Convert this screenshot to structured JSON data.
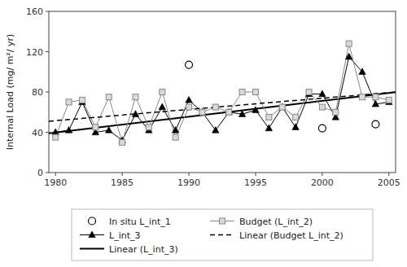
{
  "chart_data": {
    "type": "line",
    "y_label": "Internal Load (mg/ m²/ yr)",
    "xlim": [
      1979.5,
      2005.5
    ],
    "ylim": [
      0,
      160
    ],
    "xticks": [
      1980,
      1985,
      1990,
      1995,
      2000,
      2005
    ],
    "yticks": [
      0,
      40,
      80,
      120,
      160
    ],
    "grid": false,
    "legend": "bottom",
    "series": [
      {
        "name": "In situ L_int_1",
        "type": "scatter",
        "color": "#000000",
        "marker": "circle",
        "x": [
          1990,
          2000,
          2004
        ],
        "values": [
          107,
          44,
          48
        ]
      },
      {
        "name": "L_int_3",
        "type": "line",
        "color": "#000000",
        "marker": "triangle",
        "line_style": "solid",
        "x": [
          1980,
          1981,
          1982,
          1983,
          1984,
          1985,
          1986,
          1987,
          1988,
          1989,
          1990,
          1991,
          1992,
          1993,
          1994,
          1995,
          1996,
          1997,
          1998,
          1999,
          2000,
          2001,
          2002,
          2003,
          2004,
          2005
        ],
        "values": [
          40,
          42,
          70,
          40,
          42,
          32,
          58,
          42,
          65,
          42,
          72,
          60,
          42,
          60,
          58,
          62,
          44,
          65,
          45,
          78,
          78,
          55,
          115,
          100,
          68,
          70
        ]
      },
      {
        "name": "Linear (L_int_3)",
        "type": "line",
        "color": "#000000",
        "line_style": "solid",
        "x": [
          1979.5,
          2005.5
        ],
        "values": [
          39.05,
          79.79
        ]
      },
      {
        "name": "Budget (L_int_2)",
        "type": "line",
        "color": "#888888",
        "marker": "square",
        "line_style": "solid",
        "x": [
          1980,
          1981,
          1982,
          1983,
          1984,
          1985,
          1986,
          1987,
          1988,
          1989,
          1990,
          1991,
          1992,
          1993,
          1994,
          1995,
          1996,
          1997,
          1998,
          1999,
          2000,
          2001,
          2002,
          2003,
          2004,
          2005
        ],
        "values": [
          35,
          70,
          72,
          45,
          75,
          30,
          75,
          45,
          80,
          35,
          65,
          60,
          65,
          60,
          80,
          80,
          55,
          65,
          55,
          80,
          65,
          60,
          128,
          75,
          75,
          72
        ]
      },
      {
        "name": "Linear (Budget L_int_2)",
        "type": "line",
        "color": "#000000",
        "line_style": "dashed",
        "x": [
          1979.5,
          2005.5
        ],
        "values": [
          50.97,
          79.95
        ]
      }
    ]
  }
}
